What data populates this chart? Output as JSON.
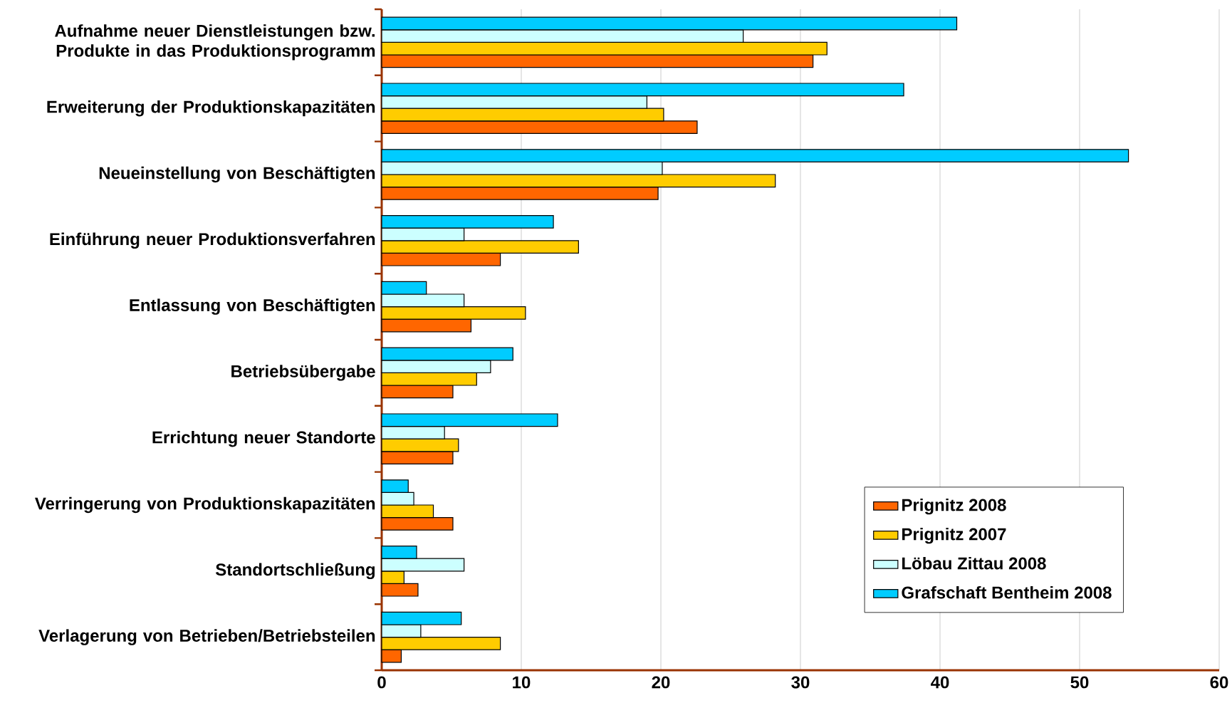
{
  "chart_data": {
    "type": "bar",
    "orientation": "horizontal",
    "categories": [
      "Aufnahme neuer Dienstleistungen bzw. Produkte in das Produktionsprogramm",
      "Erweiterung der Produktionskapazitäten",
      "Neueinstellung von Beschäftigten",
      "Einführung neuer Produktionsverfahren",
      "Entlassung von Beschäftigten",
      "Betriebsübergabe",
      "Errichtung neuer Standorte",
      "Verringerung von Produktionskapazitäten",
      "Standortschließung",
      "Verlagerung von Betrieben/Betriebsteilen"
    ],
    "series": [
      {
        "name": "Prignitz 2008",
        "color": "#ff6600",
        "values": [
          30.9,
          22.6,
          19.8,
          8.5,
          6.4,
          5.1,
          5.1,
          5.1,
          2.6,
          1.4
        ]
      },
      {
        "name": "Prignitz 2007",
        "color": "#ffcc00",
        "values": [
          31.9,
          20.2,
          28.2,
          14.1,
          10.3,
          6.8,
          5.5,
          3.7,
          1.6,
          8.5
        ]
      },
      {
        "name": "Löbau Zittau 2008",
        "color": "#ccffff",
        "values": [
          25.9,
          19.0,
          20.1,
          5.9,
          5.9,
          7.8,
          4.5,
          2.3,
          5.9,
          2.8
        ]
      },
      {
        "name": "Grafschaft Bentheim 2008",
        "color": "#00ccff",
        "values": [
          41.2,
          37.4,
          53.5,
          12.3,
          3.2,
          9.4,
          12.6,
          1.9,
          2.5,
          5.7
        ]
      }
    ],
    "xlim": [
      0,
      60
    ],
    "xticks": [
      0,
      10,
      20,
      30,
      40,
      50,
      60
    ],
    "grid": "x",
    "legend": "bottom right"
  }
}
